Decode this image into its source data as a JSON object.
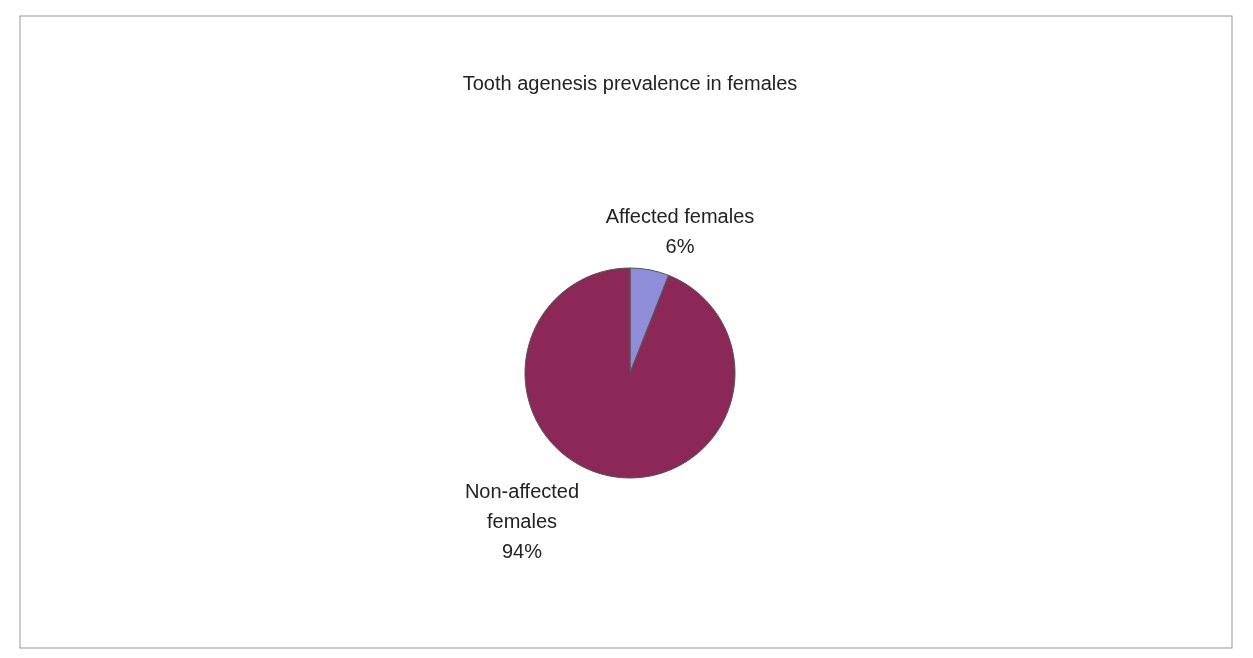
{
  "chart_data": {
    "type": "pie",
    "title": "Tooth agenesis prevalence in females",
    "categories": [
      "Affected females",
      "Non-affected females"
    ],
    "values": [
      6,
      94
    ],
    "colors": [
      "#8e8ed8",
      "#8b2858"
    ],
    "value_labels": [
      "6%",
      "94%"
    ]
  }
}
